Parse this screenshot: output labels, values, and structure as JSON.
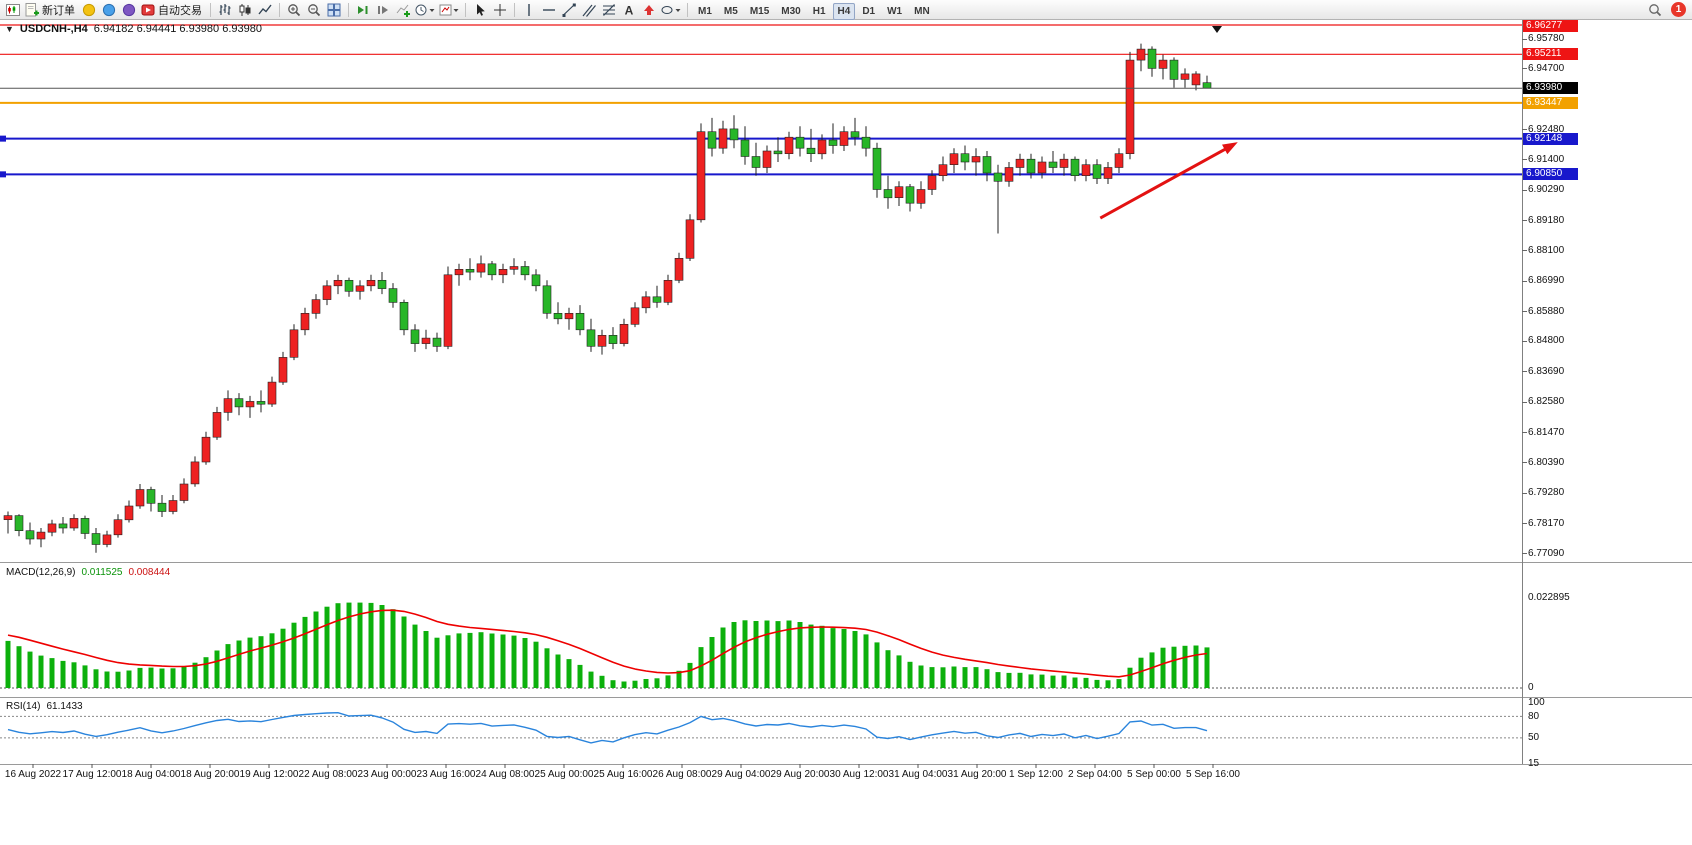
{
  "toolbar": {
    "new_order_label": "新订单",
    "autotrading_label": "自动交易",
    "timeframes": [
      "M1",
      "M5",
      "M15",
      "M30",
      "H1",
      "H4",
      "D1",
      "W1",
      "MN"
    ],
    "active_timeframe": "H4",
    "notification_count": "1"
  },
  "chart_header": {
    "marker": "▼",
    "symbol": "USDCNH-,H4",
    "ohlc": "6.94182 6.94441 6.93980 6.93980"
  },
  "chart_data": {
    "type": "candlestick",
    "symbol": "USDCNH-",
    "timeframe": "H4",
    "colors": {
      "up": "#ee2222",
      "down": "#28b628",
      "wick": "#222222",
      "macd_hist": "#0cb00c",
      "macd_signal": "#ee0000",
      "rsi_line": "#2a84dc",
      "bid_line": "#555555"
    },
    "styles": {
      "red": "#ee1414",
      "orange": "#f2a100",
      "blue": "#1818cc",
      "bid": "#000000"
    },
    "bid_price": 6.9398,
    "hlines": [
      {
        "price": 6.96277,
        "style": "red"
      },
      {
        "price": 6.95211,
        "style": "red"
      },
      {
        "price": 6.93447,
        "style": "orange"
      },
      {
        "price": 6.92148,
        "style": "blue"
      },
      {
        "price": 6.9085,
        "style": "blue"
      }
    ],
    "price_labels": [
      {
        "text": "6.96277",
        "style": "red"
      },
      {
        "text": "6.95780",
        "style": "plain"
      },
      {
        "text": "6.95211",
        "style": "red"
      },
      {
        "text": "6.94700",
        "style": "plain"
      },
      {
        "text": "6.93980",
        "style": "bid"
      },
      {
        "text": "6.93447",
        "style": "orange"
      },
      {
        "text": "6.92480",
        "style": "plain"
      },
      {
        "text": "6.92148",
        "style": "blue"
      },
      {
        "text": "6.91400",
        "style": "plain"
      },
      {
        "text": "6.90850",
        "style": "blue"
      },
      {
        "text": "6.90290",
        "style": "plain"
      },
      {
        "text": "6.89180",
        "style": "plain"
      },
      {
        "text": "6.88100",
        "style": "plain"
      },
      {
        "text": "6.86990",
        "style": "plain"
      },
      {
        "text": "6.85880",
        "style": "plain"
      },
      {
        "text": "6.84800",
        "style": "plain"
      },
      {
        "text": "6.83690",
        "style": "plain"
      },
      {
        "text": "6.82580",
        "style": "plain"
      },
      {
        "text": "6.81470",
        "style": "plain"
      },
      {
        "text": "6.80390",
        "style": "plain"
      },
      {
        "text": "6.79280",
        "style": "plain"
      },
      {
        "text": "6.78170",
        "style": "plain"
      },
      {
        "text": "6.77090",
        "style": "plain"
      }
    ],
    "candles": [
      [
        6.783,
        6.786,
        6.778,
        6.7845
      ],
      [
        6.7845,
        6.785,
        6.777,
        6.779
      ],
      [
        6.779,
        6.782,
        6.774,
        6.776
      ],
      [
        6.776,
        6.78,
        6.773,
        6.7785
      ],
      [
        6.7785,
        6.783,
        6.777,
        6.7815
      ],
      [
        6.7815,
        6.784,
        6.778,
        6.78
      ],
      [
        6.78,
        6.785,
        6.779,
        6.7835
      ],
      [
        6.7835,
        6.7845,
        6.776,
        6.778
      ],
      [
        6.778,
        6.78,
        6.771,
        6.774
      ],
      [
        6.774,
        6.779,
        6.773,
        6.7775
      ],
      [
        6.7775,
        6.785,
        6.7765,
        6.783
      ],
      [
        6.783,
        6.79,
        6.782,
        6.788
      ],
      [
        6.788,
        6.796,
        6.787,
        6.794
      ],
      [
        6.794,
        6.795,
        6.786,
        6.789
      ],
      [
        6.789,
        6.792,
        6.784,
        6.786
      ],
      [
        6.786,
        6.792,
        6.785,
        6.79
      ],
      [
        6.79,
        6.798,
        6.789,
        6.796
      ],
      [
        6.796,
        6.806,
        6.795,
        6.804
      ],
      [
        6.804,
        6.815,
        6.803,
        6.813
      ],
      [
        6.813,
        6.824,
        6.812,
        6.822
      ],
      [
        6.822,
        6.83,
        6.819,
        6.827
      ],
      [
        6.827,
        6.829,
        6.821,
        6.824
      ],
      [
        6.824,
        6.828,
        6.82,
        6.826
      ],
      [
        6.826,
        6.83,
        6.822,
        6.825
      ],
      [
        6.825,
        6.835,
        6.824,
        6.833
      ],
      [
        6.833,
        6.844,
        6.832,
        6.842
      ],
      [
        6.842,
        6.854,
        6.841,
        6.852
      ],
      [
        6.852,
        6.86,
        6.85,
        6.858
      ],
      [
        6.858,
        6.865,
        6.856,
        6.863
      ],
      [
        6.863,
        6.87,
        6.861,
        6.868
      ],
      [
        6.868,
        6.872,
        6.865,
        6.87
      ],
      [
        6.87,
        6.871,
        6.864,
        6.866
      ],
      [
        6.866,
        6.87,
        6.863,
        6.868
      ],
      [
        6.868,
        6.872,
        6.866,
        6.87
      ],
      [
        6.87,
        6.873,
        6.865,
        6.867
      ],
      [
        6.867,
        6.869,
        6.86,
        6.862
      ],
      [
        6.862,
        6.863,
        6.85,
        6.852
      ],
      [
        6.852,
        6.854,
        6.844,
        6.847
      ],
      [
        6.847,
        6.852,
        6.845,
        6.849
      ],
      [
        6.849,
        6.851,
        6.844,
        6.846
      ],
      [
        6.846,
        6.875,
        6.845,
        6.872
      ],
      [
        6.872,
        6.876,
        6.868,
        6.874
      ],
      [
        6.874,
        6.878,
        6.87,
        6.873
      ],
      [
        6.873,
        6.879,
        6.871,
        6.876
      ],
      [
        6.876,
        6.877,
        6.87,
        6.872
      ],
      [
        6.872,
        6.876,
        6.869,
        6.874
      ],
      [
        6.874,
        6.878,
        6.872,
        6.875
      ],
      [
        6.875,
        6.877,
        6.87,
        6.872
      ],
      [
        6.872,
        6.874,
        6.866,
        6.868
      ],
      [
        6.868,
        6.87,
        6.856,
        6.858
      ],
      [
        6.858,
        6.862,
        6.854,
        6.856
      ],
      [
        6.856,
        6.86,
        6.852,
        6.858
      ],
      [
        6.858,
        6.861,
        6.85,
        6.852
      ],
      [
        6.852,
        6.856,
        6.844,
        6.846
      ],
      [
        6.846,
        6.852,
        6.843,
        6.85
      ],
      [
        6.85,
        6.853,
        6.845,
        6.847
      ],
      [
        6.847,
        6.856,
        6.846,
        6.854
      ],
      [
        6.854,
        6.862,
        6.853,
        6.86
      ],
      [
        6.86,
        6.866,
        6.858,
        6.864
      ],
      [
        6.864,
        6.868,
        6.86,
        6.862
      ],
      [
        6.862,
        6.872,
        6.861,
        6.87
      ],
      [
        6.87,
        6.88,
        6.869,
        6.878
      ],
      [
        6.878,
        6.894,
        6.877,
        6.892
      ],
      [
        6.892,
        6.927,
        6.891,
        6.924
      ],
      [
        6.924,
        6.929,
        6.915,
        6.918
      ],
      [
        6.918,
        6.928,
        6.916,
        6.925
      ],
      [
        6.925,
        6.93,
        6.918,
        6.921
      ],
      [
        6.921,
        6.926,
        6.912,
        6.915
      ],
      [
        6.915,
        6.92,
        6.908,
        6.911
      ],
      [
        6.911,
        6.919,
        6.909,
        6.917
      ],
      [
        6.917,
        6.922,
        6.913,
        6.916
      ],
      [
        6.916,
        6.924,
        6.914,
        6.922
      ],
      [
        6.922,
        6.926,
        6.915,
        6.918
      ],
      [
        6.918,
        6.925,
        6.913,
        6.916
      ],
      [
        6.916,
        6.923,
        6.914,
        6.921
      ],
      [
        6.921,
        6.927,
        6.916,
        6.919
      ],
      [
        6.919,
        6.926,
        6.917,
        6.924
      ],
      [
        6.924,
        6.929,
        6.919,
        6.922
      ],
      [
        6.922,
        6.926,
        6.915,
        6.918
      ],
      [
        6.918,
        6.92,
        6.9,
        6.903
      ],
      [
        6.903,
        6.908,
        6.896,
        6.9
      ],
      [
        6.9,
        6.906,
        6.897,
        6.904
      ],
      [
        6.904,
        6.905,
        6.895,
        6.898
      ],
      [
        6.898,
        6.906,
        6.896,
        6.903
      ],
      [
        6.903,
        6.91,
        6.901,
        6.908
      ],
      [
        6.908,
        6.915,
        6.906,
        6.912
      ],
      [
        6.912,
        6.918,
        6.909,
        6.916
      ],
      [
        6.916,
        6.919,
        6.91,
        6.913
      ],
      [
        6.913,
        6.918,
        6.908,
        6.915
      ],
      [
        6.915,
        6.917,
        6.906,
        6.909
      ],
      [
        6.909,
        6.912,
        6.887,
        6.906
      ],
      [
        6.906,
        6.913,
        6.904,
        6.911
      ],
      [
        6.911,
        6.916,
        6.908,
        6.914
      ],
      [
        6.914,
        6.916,
        6.907,
        6.909
      ],
      [
        6.909,
        6.915,
        6.907,
        6.913
      ],
      [
        6.913,
        6.917,
        6.909,
        6.911
      ],
      [
        6.911,
        6.916,
        6.908,
        6.914
      ],
      [
        6.914,
        6.915,
        6.906,
        6.908
      ],
      [
        6.908,
        6.914,
        6.906,
        6.912
      ],
      [
        6.912,
        6.914,
        6.905,
        6.907
      ],
      [
        6.907,
        6.913,
        6.905,
        6.911
      ],
      [
        6.911,
        6.918,
        6.909,
        6.916
      ],
      [
        6.916,
        6.953,
        6.914,
        6.95
      ],
      [
        6.95,
        6.956,
        6.946,
        6.954
      ],
      [
        6.954,
        6.955,
        6.944,
        6.947
      ],
      [
        6.947,
        6.952,
        6.943,
        6.95
      ],
      [
        6.95,
        6.951,
        6.94,
        6.943
      ],
      [
        6.943,
        6.947,
        6.94,
        6.945
      ],
      [
        6.941,
        6.946,
        6.939,
        6.945
      ],
      [
        6.9418,
        6.9444,
        6.9398,
        6.9398
      ]
    ],
    "macd": {
      "name": "MACD(12,26,9)",
      "value_main": "0.011525",
      "value_signal": "0.008444",
      "scale_top": "0.022895",
      "scale_bottom": "0"
    },
    "rsi": {
      "name": "RSI(14)",
      "value": "61.1433",
      "scale": [
        "100",
        "80",
        "50",
        "15"
      ],
      "levels": [
        80,
        50
      ]
    },
    "time_labels": [
      "16 Aug 2022",
      "17 Aug 12:00",
      "18 Aug 04:00",
      "18 Aug 20:00",
      "19 Aug 12:00",
      "22 Aug 08:00",
      "23 Aug 00:00",
      "23 Aug 16:00",
      "24 Aug 08:00",
      "25 Aug 00:00",
      "25 Aug 16:00",
      "26 Aug 08:00",
      "29 Aug 04:00",
      "29 Aug 20:00",
      "30 Aug 12:00",
      "31 Aug 04:00",
      "31 Aug 20:00",
      "1 Sep 12:00",
      "2 Sep 04:00",
      "5 Sep 00:00",
      "5 Sep 16:00"
    ],
    "annotations": [
      {
        "type": "arrow",
        "color": "#e31212",
        "from_bar": 99.3,
        "from_price": 6.8926,
        "to_bar": 111.8,
        "to_price": 6.9202
      }
    ]
  }
}
